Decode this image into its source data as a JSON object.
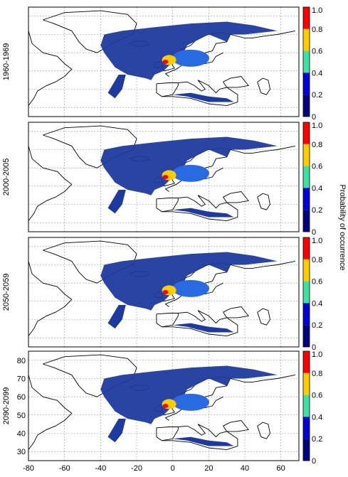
{
  "panels": [
    {
      "label": "1960-1969",
      "show_y_ticks": false
    },
    {
      "label": "2000-2005",
      "show_y_ticks": false
    },
    {
      "label": "2050-2059",
      "show_y_ticks": false
    },
    {
      "label": "2090-2099",
      "show_y_ticks": true
    }
  ],
  "x_tick_labels": [
    "-80",
    "-60",
    "-40",
    "-20",
    "0",
    "20",
    "40",
    "60"
  ],
  "y_tick_labels": [
    "80",
    "70",
    "60",
    "50",
    "40",
    "30"
  ],
  "colorbar": {
    "label": "Probability of occurrence",
    "tick_labels": [
      "1.0",
      "0.8",
      "0.6",
      "0.4",
      "0.2",
      "0"
    ],
    "bands": [
      {
        "range": "0.8-1.0",
        "color": "#ff0000"
      },
      {
        "range": "0.6-0.8",
        "color": "#ffcc00"
      },
      {
        "range": "0.4-0.6",
        "color": "#40e0a0"
      },
      {
        "range": "0.2-0.4",
        "color": "#0000dd"
      },
      {
        "range": "0-0.2",
        "color": "#000080"
      }
    ]
  },
  "map_colors": {
    "ocean_low": "#1f3a9e",
    "ocean_mid": "#2a6ae0",
    "coast": "#000000",
    "grid": "#999999"
  }
}
